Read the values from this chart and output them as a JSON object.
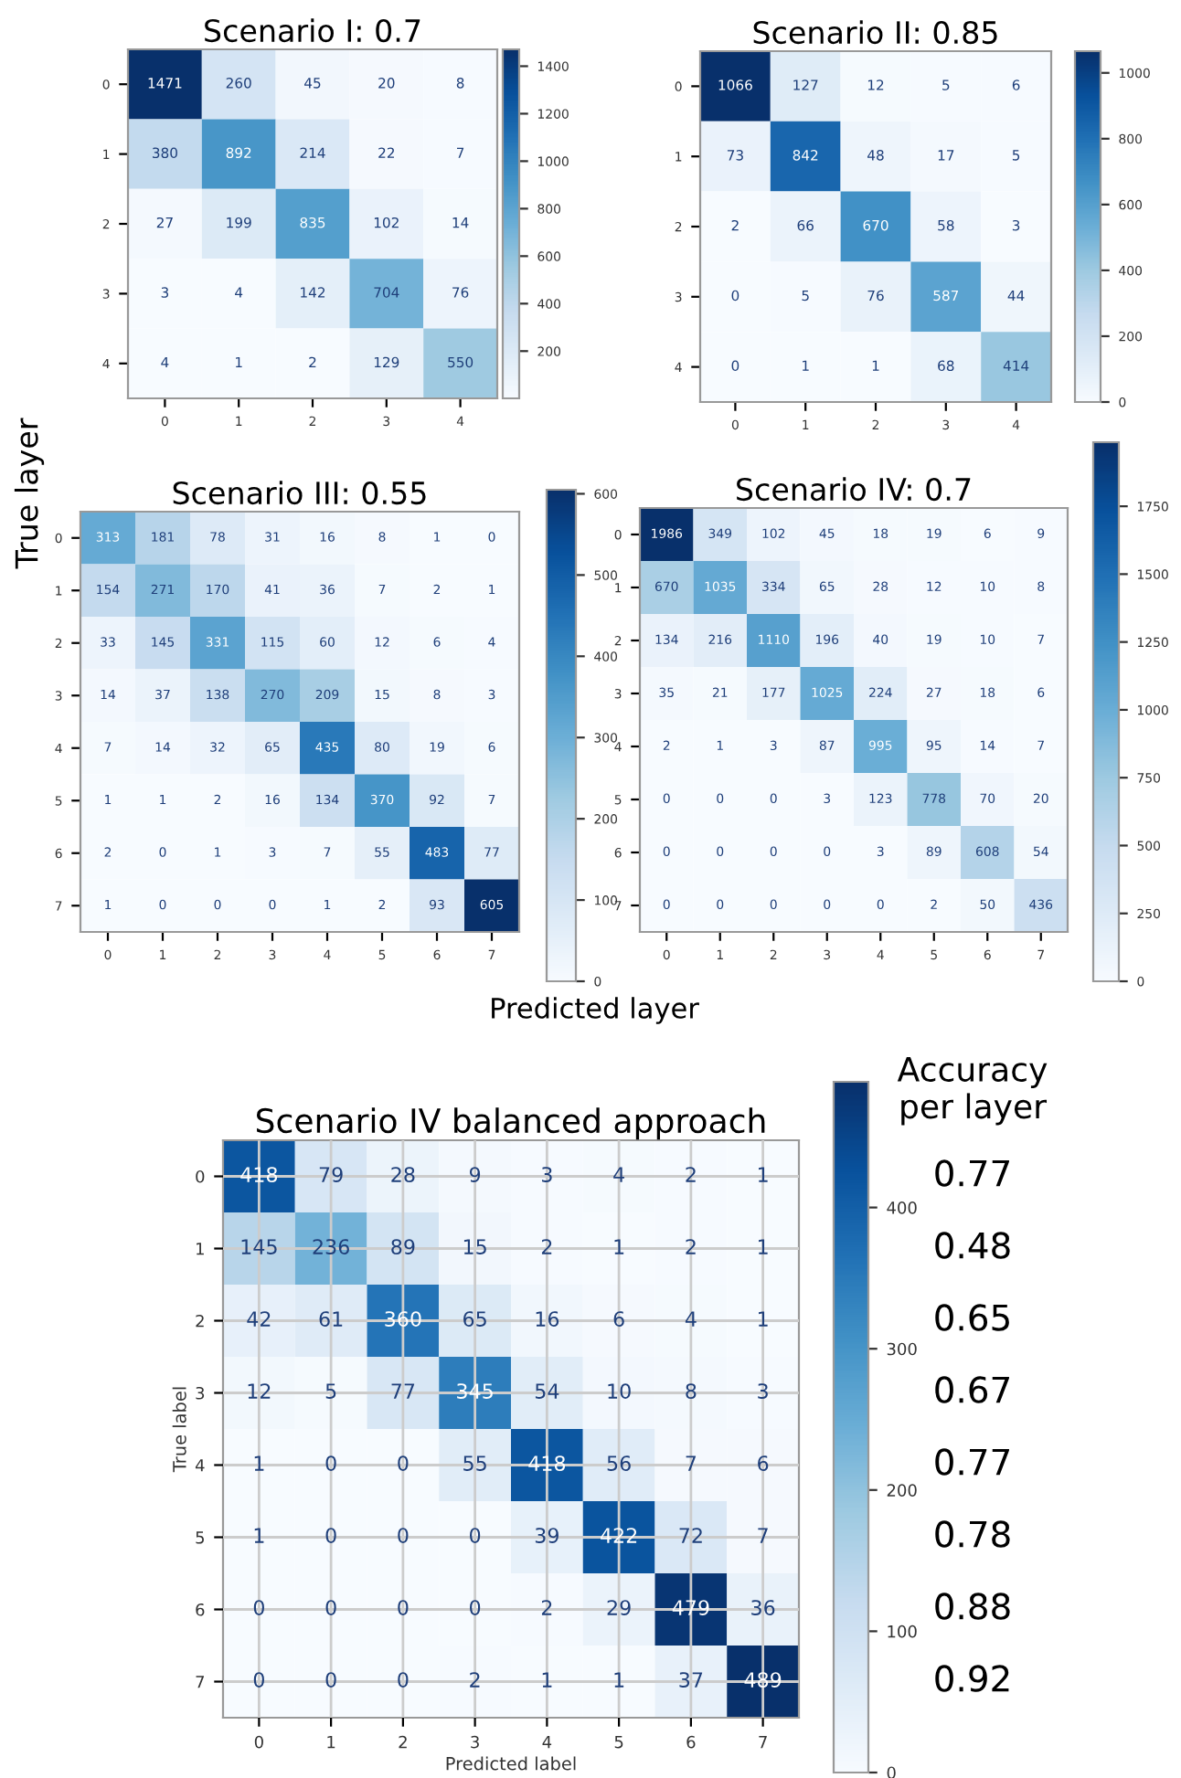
{
  "chart_data": [
    {
      "type": "heatmap",
      "title": "Scenario I: 0.7",
      "categories": [
        "0",
        "1",
        "2",
        "3",
        "4"
      ],
      "y_categories": [
        "0",
        "1",
        "2",
        "3",
        "4"
      ],
      "cells": [
        [
          1471,
          260,
          45,
          20,
          8
        ],
        [
          380,
          892,
          214,
          22,
          7
        ],
        [
          27,
          199,
          835,
          102,
          14
        ],
        [
          3,
          4,
          142,
          704,
          76
        ],
        [
          4,
          1,
          2,
          129,
          550
        ]
      ],
      "data_labels": true,
      "clim": [
        1,
        1471
      ],
      "cticks": [
        200,
        400,
        600,
        800,
        1000,
        1200,
        1400
      ],
      "grid": false
    },
    {
      "type": "heatmap",
      "title": "Scenario II: 0.85",
      "categories": [
        "0",
        "1",
        "2",
        "3",
        "4"
      ],
      "y_categories": [
        "0",
        "1",
        "2",
        "3",
        "4"
      ],
      "cells": [
        [
          1066,
          127,
          12,
          5,
          6
        ],
        [
          73,
          842,
          48,
          17,
          5
        ],
        [
          2,
          66,
          670,
          58,
          3
        ],
        [
          0,
          5,
          76,
          587,
          44
        ],
        [
          0,
          1,
          1,
          68,
          414
        ]
      ],
      "data_labels": true,
      "clim": [
        0,
        1066
      ],
      "cticks": [
        0,
        200,
        400,
        600,
        800,
        1000
      ],
      "grid": false
    },
    {
      "type": "heatmap",
      "title": "Scenario III: 0.55",
      "xlabel": "Predicted layer",
      "ylabel": "True layer",
      "categories": [
        "0",
        "1",
        "2",
        "3",
        "4",
        "5",
        "6",
        "7"
      ],
      "y_categories": [
        "0",
        "1",
        "2",
        "3",
        "4",
        "5",
        "6",
        "7"
      ],
      "cells": [
        [
          313,
          181,
          78,
          31,
          16,
          8,
          1,
          0
        ],
        [
          154,
          271,
          170,
          41,
          36,
          7,
          2,
          1
        ],
        [
          33,
          145,
          331,
          115,
          60,
          12,
          6,
          4
        ],
        [
          14,
          37,
          138,
          270,
          209,
          15,
          8,
          3
        ],
        [
          7,
          14,
          32,
          65,
          435,
          80,
          19,
          6
        ],
        [
          1,
          1,
          2,
          16,
          134,
          370,
          92,
          7
        ],
        [
          2,
          0,
          1,
          3,
          7,
          55,
          483,
          77
        ],
        [
          1,
          0,
          0,
          0,
          1,
          2,
          93,
          605
        ]
      ],
      "data_labels": true,
      "clim": [
        0,
        605
      ],
      "cticks": [
        0,
        100,
        200,
        300,
        400,
        500,
        600
      ],
      "grid": false
    },
    {
      "type": "heatmap",
      "title": "Scenario IV: 0.7",
      "categories": [
        "0",
        "1",
        "2",
        "3",
        "4",
        "5",
        "6",
        "7"
      ],
      "y_categories": [
        "0",
        "1",
        "2",
        "3",
        "4",
        "5",
        "6",
        "7"
      ],
      "cells": [
        [
          1986,
          349,
          102,
          45,
          18,
          19,
          6,
          9
        ],
        [
          670,
          1035,
          334,
          65,
          28,
          12,
          10,
          8
        ],
        [
          134,
          216,
          1110,
          196,
          40,
          19,
          10,
          7
        ],
        [
          35,
          21,
          177,
          1025,
          224,
          27,
          18,
          6
        ],
        [
          2,
          1,
          3,
          87,
          995,
          95,
          14,
          7
        ],
        [
          0,
          0,
          0,
          3,
          123,
          778,
          70,
          20
        ],
        [
          0,
          0,
          0,
          0,
          3,
          89,
          608,
          54
        ],
        [
          0,
          0,
          0,
          0,
          0,
          2,
          50,
          436
        ]
      ],
      "data_labels": true,
      "clim": [
        0,
        1986
      ],
      "cticks": [
        0,
        250,
        500,
        750,
        1000,
        1250,
        1500,
        1750
      ],
      "grid": false
    },
    {
      "type": "heatmap",
      "title": "Scenario IV balanced approach",
      "xlabel": "Predicted label",
      "ylabel": "True label",
      "categories": [
        "0",
        "1",
        "2",
        "3",
        "4",
        "5",
        "6",
        "7"
      ],
      "y_categories": [
        "0",
        "1",
        "2",
        "3",
        "4",
        "5",
        "6",
        "7"
      ],
      "y2_categories": [
        "0.77",
        "0.48",
        "0.65",
        "0.67",
        "0.77",
        "0.78",
        "0.88",
        "0.92"
      ],
      "annotations": [
        "Accuracy per layer"
      ],
      "cells": [
        [
          418,
          79,
          28,
          9,
          3,
          4,
          2,
          1
        ],
        [
          145,
          236,
          89,
          15,
          2,
          1,
          2,
          1
        ],
        [
          42,
          61,
          360,
          65,
          16,
          6,
          4,
          1
        ],
        [
          12,
          5,
          77,
          345,
          54,
          10,
          8,
          3
        ],
        [
          1,
          0,
          0,
          55,
          418,
          56,
          7,
          6
        ],
        [
          1,
          0,
          0,
          0,
          39,
          422,
          72,
          7
        ],
        [
          0,
          0,
          0,
          0,
          2,
          29,
          479,
          36
        ],
        [
          0,
          0,
          0,
          2,
          1,
          1,
          37,
          489
        ]
      ],
      "data_labels": true,
      "clim": [
        0,
        489
      ],
      "cticks": [
        0,
        100,
        200,
        300,
        400
      ],
      "grid": true
    }
  ]
}
